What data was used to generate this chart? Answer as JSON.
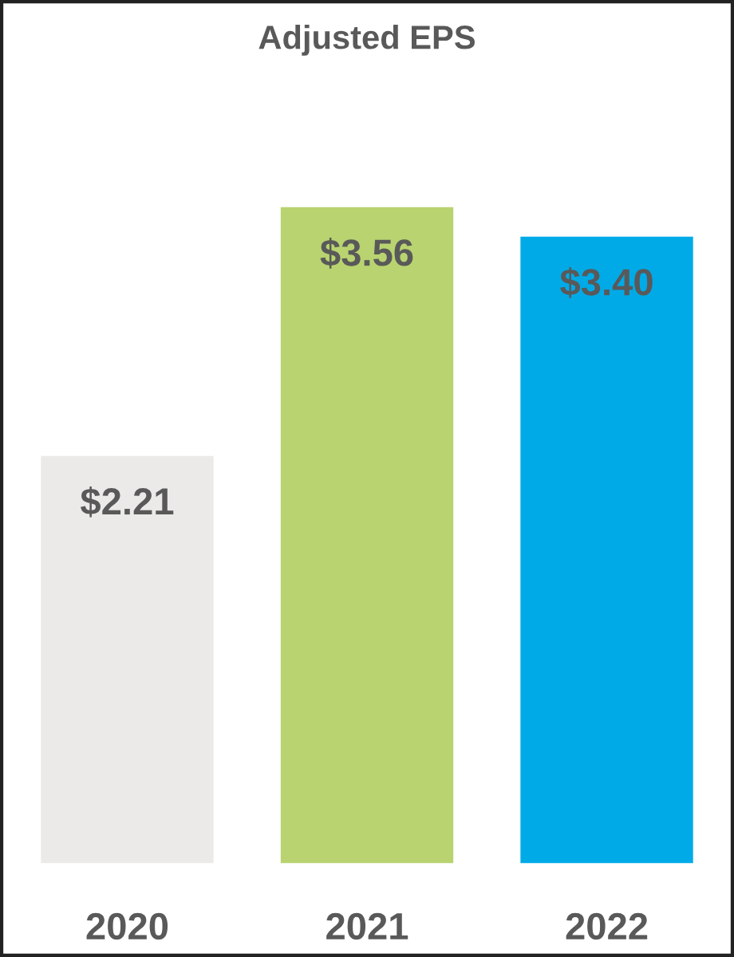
{
  "chart_data": {
    "type": "bar",
    "title": "Adjusted EPS",
    "categories": [
      "2020",
      "2021",
      "2022"
    ],
    "values": [
      2.21,
      3.56,
      3.4
    ],
    "value_labels": [
      "$2.21",
      "$3.56",
      "$3.40"
    ],
    "colors": [
      "#ebeae8",
      "#b8d370",
      "#00aae7"
    ],
    "grid": false,
    "legend": false
  }
}
